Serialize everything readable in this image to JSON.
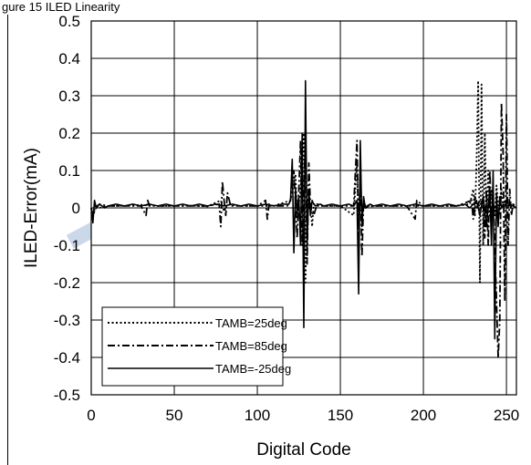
{
  "header_fragment": "gure 15 ILED Linearity",
  "colors": {
    "watermark": "#b9cbe3",
    "grid": "#000000",
    "series": "#000000"
  },
  "chart_data": {
    "type": "line",
    "title": "",
    "xlabel": "Digital Code",
    "ylabel": "ILED-Error(mA)",
    "xlim": [
      0,
      256
    ],
    "ylim": [
      -0.5,
      0.5
    ],
    "xticks": [
      0,
      50,
      100,
      150,
      200,
      250
    ],
    "yticks": [
      -0.5,
      -0.4,
      -0.3,
      -0.2,
      -0.1,
      0,
      0.1,
      0.2,
      0.3,
      0.4,
      0.5
    ],
    "xtick_labels": [
      "0",
      "50",
      "100",
      "150",
      "200",
      "250"
    ],
    "ytick_labels": [
      "-0.5",
      "-0.4",
      "-0.3",
      "-0.2",
      "-0.1",
      "0",
      "0.1",
      "0.2",
      "0.3",
      "0.4",
      "0.5"
    ],
    "grid": true,
    "legend_placement": "bottom-left",
    "series": [
      {
        "name": "TAMB=25deg",
        "style": "dotted",
        "x": [
          0,
          1,
          3,
          5,
          10,
          20,
          30,
          40,
          50,
          60,
          70,
          78,
          80,
          82,
          90,
          100,
          110,
          120,
          123,
          124,
          126,
          128,
          129,
          130,
          131,
          132,
          133,
          134,
          136,
          140,
          150,
          158,
          160,
          161,
          162,
          163,
          164,
          166,
          170,
          180,
          190,
          200,
          210,
          220,
          228,
          230,
          231,
          232,
          233,
          234,
          235,
          236,
          237,
          238,
          239,
          240,
          241,
          242,
          243,
          244,
          245,
          246,
          247,
          248,
          249,
          250,
          252,
          254,
          256
        ],
        "values": [
          0,
          -0.02,
          0.01,
          0,
          0.005,
          0.005,
          0.008,
          0.005,
          0.005,
          0.006,
          0.004,
          0.02,
          -0.01,
          0.01,
          0.005,
          0.005,
          0.005,
          0.02,
          0.09,
          -0.03,
          0.05,
          0.2,
          -0.2,
          0.02,
          0,
          0.01,
          -0.05,
          0.01,
          0.005,
          0.005,
          0.005,
          -0.02,
          0.12,
          -0.05,
          0.08,
          -0.01,
          0.01,
          0.005,
          0.005,
          0.005,
          0.005,
          0.005,
          0.005,
          0.005,
          0.01,
          0.05,
          -0.02,
          0.12,
          0.34,
          -0.2,
          0.33,
          -0.1,
          0.2,
          -0.05,
          0.1,
          -0.02,
          0.05,
          0.02,
          -0.02,
          0.06,
          0.01,
          -0.02,
          0.05,
          0,
          0.02,
          0.01,
          0,
          0.01,
          0
        ]
      },
      {
        "name": "TAMB=85deg",
        "style": "dashdot",
        "x": [
          0,
          1,
          3,
          5,
          10,
          20,
          30,
          33,
          34,
          35,
          40,
          50,
          60,
          70,
          77,
          78,
          79,
          80,
          81,
          82,
          84,
          90,
          100,
          105,
          106,
          107,
          110,
          118,
          120,
          122,
          124,
          126,
          127,
          128,
          129,
          130,
          131,
          132,
          134,
          136,
          140,
          150,
          158,
          160,
          161,
          162,
          163,
          164,
          165,
          170,
          180,
          190,
          195,
          196,
          200,
          210,
          220,
          229,
          230,
          231,
          232,
          234,
          236,
          237,
          238,
          239,
          240,
          241,
          242,
          243,
          244,
          245,
          246,
          247,
          248,
          249,
          250,
          251,
          252,
          253,
          254,
          256
        ],
        "values": [
          0,
          -0.02,
          0,
          0.01,
          0.005,
          0.005,
          0.005,
          -0.02,
          0.02,
          0.005,
          0.005,
          0.005,
          0.005,
          0.005,
          0.01,
          -0.05,
          0.07,
          0.02,
          -0.02,
          0.04,
          0.005,
          0.005,
          0.005,
          0.02,
          -0.03,
          0.01,
          0.005,
          0.005,
          0.02,
          0.1,
          -0.08,
          0.18,
          -0.1,
          0.03,
          0.2,
          -0.15,
          0.12,
          0,
          -0.02,
          0.01,
          0.005,
          0.005,
          0.005,
          0.18,
          -0.1,
          0.1,
          -0.13,
          0.02,
          0,
          0.005,
          0.005,
          0.005,
          -0.03,
          0.02,
          0.005,
          0.005,
          0.005,
          0.02,
          -0.03,
          0.03,
          0,
          0.02,
          0.01,
          -0.08,
          0.05,
          -0.1,
          0.1,
          -0.05,
          0.05,
          -0.1,
          -0.25,
          -0.4,
          -0.3,
          0.28,
          0.15,
          -0.25,
          0.25,
          -0.1,
          0.05,
          -0.02,
          0.01,
          0
        ]
      },
      {
        "name": "TAMB=-25deg",
        "style": "solid",
        "x": [
          0,
          1,
          2,
          3,
          5,
          8,
          10,
          15,
          20,
          25,
          30,
          35,
          40,
          45,
          50,
          55,
          60,
          65,
          70,
          75,
          80,
          85,
          90,
          95,
          100,
          105,
          110,
          115,
          119,
          120,
          121,
          122,
          123,
          124,
          125,
          126,
          127,
          128,
          129,
          130,
          131,
          132,
          133,
          134,
          135,
          138,
          140,
          145,
          150,
          155,
          158,
          160,
          161,
          162,
          163,
          164,
          165,
          166,
          168,
          170,
          175,
          180,
          185,
          190,
          195,
          200,
          205,
          210,
          215,
          220,
          225,
          228,
          230,
          232,
          234,
          236,
          238,
          240,
          241,
          242,
          243,
          244,
          245,
          246,
          247,
          248,
          250,
          252,
          254,
          256
        ],
        "values": [
          0,
          -0.04,
          0.02,
          0,
          0.01,
          0,
          0.005,
          0.01,
          0.005,
          0.01,
          0.005,
          0.01,
          0.005,
          0.01,
          0.005,
          0.01,
          0.005,
          0.01,
          0.005,
          0.01,
          0.005,
          0.01,
          0.005,
          0.01,
          0.005,
          0.01,
          0.005,
          0.01,
          0.01,
          0.02,
          0.13,
          -0.12,
          0.05,
          -0.01,
          0.03,
          -0.1,
          0.2,
          -0.32,
          0.34,
          -0.1,
          0.05,
          -0.02,
          0.02,
          0.01,
          0.005,
          0.01,
          0.005,
          0.01,
          0.005,
          0.01,
          0.005,
          0.02,
          -0.23,
          0.18,
          -0.05,
          0.03,
          0,
          0.005,
          0.01,
          0.005,
          0.01,
          0.005,
          0.01,
          0.005,
          0.01,
          0.005,
          0.01,
          0.005,
          0.01,
          0.005,
          0.01,
          0,
          0.01,
          0.02,
          -0.02,
          0.03,
          -0.05,
          0.05,
          -0.1,
          0.1,
          -0.35,
          0.04,
          -0.05,
          0.03,
          0,
          0.01,
          0.005,
          0.01,
          0.005,
          0
        ]
      }
    ]
  }
}
